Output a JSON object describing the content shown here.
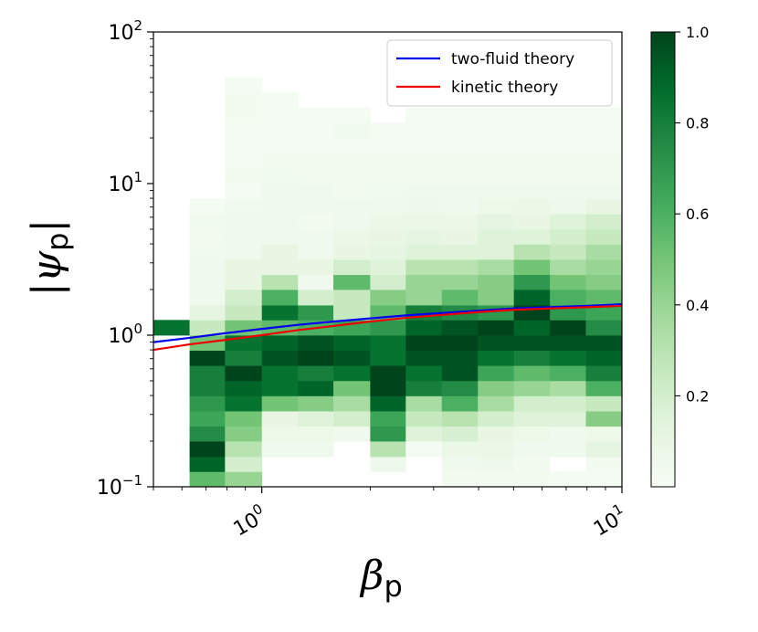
{
  "chart_data": {
    "type": "heatmap",
    "xlabel": "β",
    "xlabel_sub": "p",
    "ylabel": "|ψ",
    "ylabel_sub": "p",
    "ylabel_close": "|",
    "xscale": "log",
    "yscale": "log",
    "xlim": [
      0.5,
      10
    ],
    "ylim": [
      0.1,
      100
    ],
    "x_ticks": [
      {
        "value": 1,
        "base": "10",
        "exp": "0"
      },
      {
        "value": 10,
        "base": "10",
        "exp": "1"
      }
    ],
    "y_ticks": [
      {
        "value": 0.1,
        "base": "10",
        "exp": "−1"
      },
      {
        "value": 1,
        "base": "10",
        "exp": "0"
      },
      {
        "value": 10,
        "base": "10",
        "exp": "1"
      },
      {
        "value": 100,
        "base": "10",
        "exp": "2"
      }
    ],
    "colormap": {
      "name": "Greens",
      "stops": [
        "#f7fcf5",
        "#e5f5e0",
        "#c7e9c0",
        "#a1d99b",
        "#74c476",
        "#41ab5d",
        "#238b45",
        "#006d2c",
        "#00441b"
      ]
    },
    "colorbar": {
      "min": 0,
      "max": 1,
      "ticks": [
        "0.2",
        "0.4",
        "0.6",
        "0.8",
        "1.0"
      ],
      "tick_values": [
        0.2,
        0.4,
        0.6,
        0.8,
        1.0
      ]
    },
    "heatmap": {
      "x_edges": [
        0.5,
        0.63,
        0.79,
        1.0,
        1.26,
        1.58,
        2.0,
        2.51,
        3.16,
        3.98,
        5.01,
        6.31,
        7.94,
        10.0
      ],
      "y_edges": [
        0.1,
        0.126,
        0.158,
        0.2,
        0.251,
        0.316,
        0.398,
        0.501,
        0.631,
        0.794,
        1.0,
        1.26,
        1.58,
        2.0,
        2.51,
        3.16,
        3.98,
        5.01,
        6.31,
        7.94,
        10.0,
        12.6,
        15.8,
        20.0,
        25.1,
        31.6,
        39.8,
        50.1
      ],
      "values_note": "rows from lowest y-bin upward, columns left to right",
      "values": [
        [
          null,
          0.55,
          0.4,
          null,
          null,
          null,
          null,
          null,
          0.03,
          0.03,
          0.03,
          0.02,
          0.02
        ],
        [
          null,
          0.9,
          0.2,
          null,
          null,
          null,
          0.06,
          null,
          0.05,
          0.06,
          0.03,
          null,
          0.03
        ],
        [
          null,
          1.0,
          0.3,
          0.05,
          0.05,
          null,
          0.3,
          0.02,
          0.08,
          0.08,
          0.05,
          0.05,
          0.12
        ],
        [
          null,
          0.75,
          0.45,
          0.07,
          0.07,
          0.05,
          0.7,
          0.15,
          0.18,
          0.1,
          0.07,
          0.05,
          0.07
        ],
        [
          null,
          0.65,
          0.5,
          0.1,
          0.15,
          0.2,
          0.65,
          0.25,
          0.3,
          0.2,
          0.15,
          0.15,
          0.45
        ],
        [
          null,
          0.7,
          0.85,
          0.5,
          0.45,
          0.35,
          0.9,
          0.35,
          0.6,
          0.35,
          0.2,
          0.2,
          0.25
        ],
        [
          null,
          0.8,
          0.9,
          0.85,
          0.9,
          0.5,
          1.0,
          0.8,
          0.75,
          0.45,
          0.4,
          0.35,
          0.6
        ],
        [
          null,
          0.8,
          1.0,
          0.85,
          0.8,
          0.85,
          1.0,
          0.85,
          0.95,
          0.65,
          0.55,
          0.6,
          0.8
        ],
        [
          null,
          1.0,
          0.8,
          0.95,
          1.0,
          0.95,
          0.85,
          0.95,
          0.95,
          0.85,
          0.8,
          0.85,
          0.9
        ],
        [
          null,
          0.5,
          0.85,
          0.9,
          0.95,
          0.9,
          0.85,
          1.0,
          1.0,
          0.95,
          0.95,
          0.95,
          0.95
        ],
        [
          0.85,
          0.25,
          0.5,
          0.55,
          0.6,
          0.65,
          0.7,
          0.9,
          0.95,
          1.0,
          0.9,
          1.0,
          0.75
        ],
        [
          null,
          0.12,
          0.25,
          0.85,
          0.7,
          0.25,
          0.55,
          0.8,
          0.75,
          0.7,
          1.0,
          0.7,
          0.65
        ],
        [
          null,
          0.05,
          0.2,
          0.6,
          0.2,
          0.25,
          0.45,
          0.4,
          0.55,
          0.45,
          0.9,
          0.6,
          0.55
        ],
        [
          null,
          0.05,
          0.1,
          0.3,
          0.05,
          0.55,
          0.2,
          0.4,
          0.4,
          0.45,
          0.7,
          0.5,
          0.45
        ],
        [
          null,
          0.05,
          0.1,
          0.1,
          0.1,
          0.2,
          0.15,
          0.3,
          0.3,
          0.35,
          0.5,
          0.35,
          0.4
        ],
        [
          null,
          0.04,
          0.05,
          0.1,
          0.05,
          0.1,
          0.12,
          0.15,
          0.15,
          0.15,
          0.3,
          0.25,
          0.35
        ],
        [
          null,
          0.03,
          0.05,
          0.05,
          0.05,
          0.08,
          0.1,
          0.12,
          0.1,
          0.15,
          0.15,
          0.2,
          0.25
        ],
        [
          null,
          0.04,
          0.05,
          0.05,
          0.03,
          0.05,
          0.08,
          0.08,
          0.08,
          0.12,
          0.1,
          0.15,
          0.2
        ],
        [
          null,
          0.02,
          0.04,
          0.05,
          0.05,
          0.05,
          0.05,
          0.06,
          0.05,
          0.07,
          0.08,
          0.06,
          0.1
        ],
        [
          null,
          null,
          0.02,
          0.05,
          0.05,
          0.03,
          0.04,
          0.05,
          0.05,
          0.05,
          0.05,
          0.05,
          0.05
        ],
        [
          null,
          null,
          0.03,
          0.04,
          0.03,
          0.03,
          0.03,
          0.03,
          0.03,
          0.03,
          0.03,
          0.03,
          0.03
        ],
        [
          null,
          null,
          0.02,
          0.03,
          0.03,
          0.03,
          0.03,
          0.03,
          0.03,
          0.03,
          0.03,
          0.03,
          0.03
        ],
        [
          null,
          null,
          0.02,
          0.02,
          0.02,
          0.02,
          0.02,
          0.02,
          0.02,
          0.02,
          0.02,
          0.02,
          0.02
        ],
        [
          null,
          null,
          0.02,
          0.02,
          0.02,
          0.04,
          0.02,
          0.02,
          0.02,
          0.02,
          0.02,
          0.02,
          0.02
        ],
        [
          null,
          null,
          0.03,
          0.02,
          0.02,
          0.02,
          null,
          0.02,
          0.02,
          0.02,
          0.02,
          0.02,
          0.02
        ],
        [
          null,
          null,
          0.03,
          0.02,
          null,
          null,
          null,
          null,
          null,
          null,
          null,
          null,
          null
        ],
        [
          null,
          null,
          0.02,
          null,
          null,
          null,
          null,
          null,
          null,
          null,
          null,
          null,
          null
        ]
      ]
    },
    "series": [
      {
        "name": "two-fluid theory",
        "color": "#0000ee",
        "x": [
          0.5,
          0.63,
          0.79,
          1.0,
          1.26,
          1.58,
          2.0,
          2.51,
          3.16,
          3.98,
          5.01,
          6.31,
          7.94,
          10.0
        ],
        "y": [
          0.9,
          0.96,
          1.03,
          1.1,
          1.17,
          1.23,
          1.29,
          1.35,
          1.4,
          1.45,
          1.5,
          1.53,
          1.56,
          1.6
        ]
      },
      {
        "name": "kinetic theory",
        "color": "#ee0000",
        "x": [
          0.5,
          0.63,
          0.79,
          1.0,
          1.26,
          1.58,
          2.0,
          2.51,
          3.16,
          3.98,
          5.01,
          6.31,
          7.94,
          10.0
        ],
        "y": [
          0.8,
          0.87,
          0.93,
          1.0,
          1.08,
          1.15,
          1.23,
          1.3,
          1.36,
          1.42,
          1.47,
          1.5,
          1.53,
          1.56
        ]
      }
    ],
    "legend": {
      "placement": "top-right",
      "entries": [
        "two-fluid theory",
        "kinetic theory"
      ]
    }
  }
}
